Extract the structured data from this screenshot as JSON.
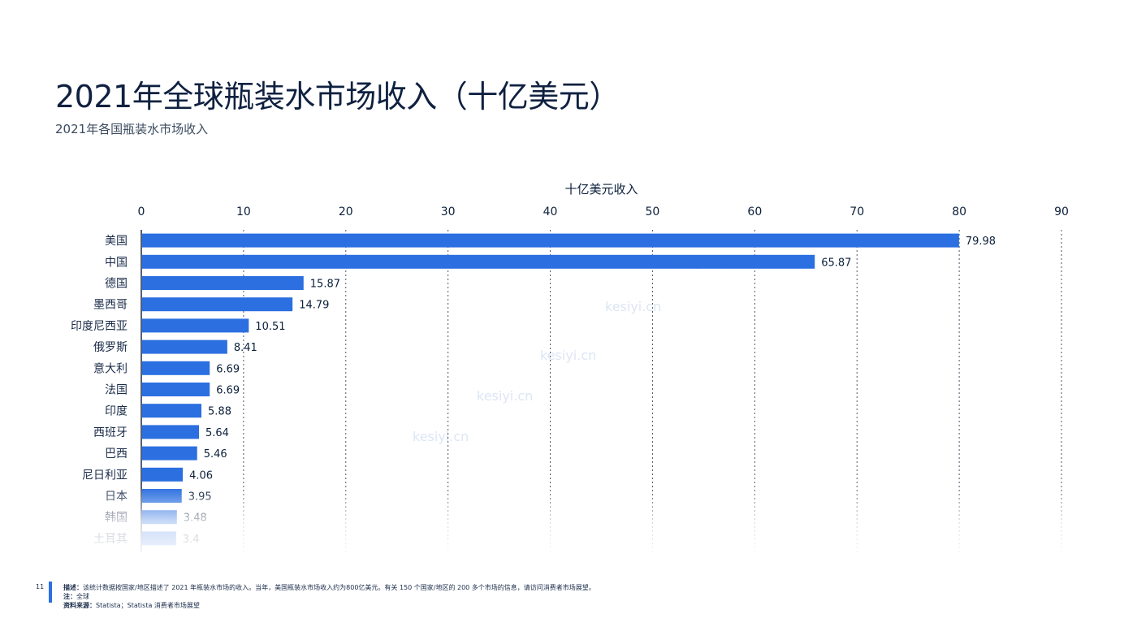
{
  "page": {
    "title": "2021年全球瓶装水市场收入（十亿美元）",
    "subtitle": "2021年各国瓶装水市场收入",
    "page_number": "11"
  },
  "footer": {
    "desc_label": "描述：",
    "desc_text": "该统计数据按国家/地区描述了 2021 年瓶装水市场的收入。当年，美国瓶装水市场收入约为800亿美元。有关 150 个国家/地区的 200 多个市场的信息，请访问消费者市场展望。",
    "note_label": "注：",
    "note_text": "全球",
    "source_label": "资料来源：",
    "source_text": "Statista；Statista 消费者市场展望"
  },
  "watermark": [
    "kesiyi.cn",
    "kesiyi.cn",
    "kesiyi.cn",
    "kesiyi.cn",
    "kesiyi.cn"
  ],
  "chart_data": {
    "type": "bar",
    "orientation": "horizontal",
    "xlabel": "十亿美元收入",
    "xlim": [
      0,
      90
    ],
    "xticks": [
      0,
      10,
      20,
      30,
      40,
      50,
      60,
      70,
      80,
      90
    ],
    "grid": "vertical dotted",
    "categories": [
      "美国",
      "中国",
      "德国",
      "墨西哥",
      "印度尼西亚",
      "俄罗斯",
      "意大利",
      "法国",
      "印度",
      "西班牙",
      "巴西",
      "尼日利亚",
      "日本",
      "韩国",
      "土耳其"
    ],
    "values": [
      79.98,
      65.87,
      15.87,
      14.79,
      10.51,
      8.41,
      6.69,
      6.69,
      5.88,
      5.64,
      5.46,
      4.06,
      3.95,
      3.48,
      3.4
    ],
    "value_labels": [
      "79.98",
      "65.87",
      "15.87",
      "14.79",
      "10.51",
      "8.41",
      "6.69",
      "6.69",
      "5.88",
      "5.64",
      "5.46",
      "4.06",
      "3.95",
      "3.48",
      "3.4"
    ],
    "bar_color": "#2b6fe0"
  }
}
